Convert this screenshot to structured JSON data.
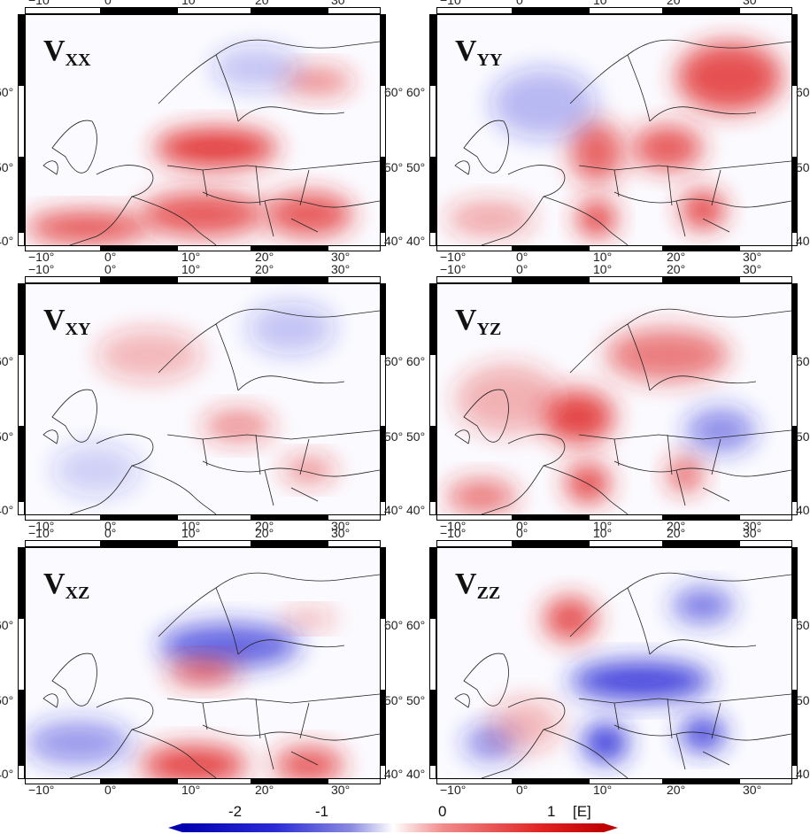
{
  "panels": [
    {
      "label_main": "V",
      "label_sub": "XX"
    },
    {
      "label_main": "V",
      "label_sub": "YY"
    },
    {
      "label_main": "V",
      "label_sub": "XY"
    },
    {
      "label_main": "V",
      "label_sub": "YZ"
    },
    {
      "label_main": "V",
      "label_sub": "XZ"
    },
    {
      "label_main": "V",
      "label_sub": "ZZ"
    }
  ],
  "axes": {
    "lon_ticks": [
      "−10°",
      "0°",
      "10°",
      "20°",
      "30°"
    ],
    "lat_ticks": [
      "60°",
      "50°",
      "40°"
    ]
  },
  "colorbar": {
    "ticks": [
      "-2",
      "-1",
      "0",
      "1"
    ],
    "unit": "[E]"
  },
  "colors": {
    "positive": "#e02424",
    "negative": "#2424d6",
    "neutral": "#ffffff"
  }
}
